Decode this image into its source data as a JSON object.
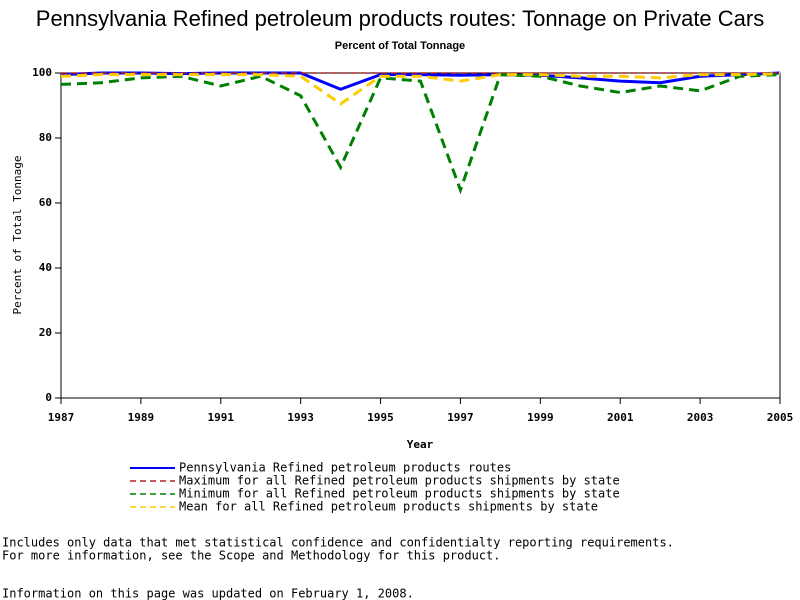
{
  "chart_data": {
    "type": "line",
    "title": "Pennsylvania Refined petroleum products routes: Tonnage on Private Cars",
    "subtitle": "Percent of Total Tonnage",
    "x_label": "Year",
    "y_label": "Percent of Total Tonnage",
    "x": [
      1987,
      1988,
      1989,
      1990,
      1991,
      1992,
      1993,
      1994,
      1995,
      1996,
      1997,
      1998,
      1999,
      2000,
      2001,
      2002,
      2003,
      2004,
      2005
    ],
    "series": [
      {
        "name": "Pennsylvania Refined petroleum products routes",
        "color": "#0000ff",
        "dashed": false,
        "values": [
          99.5,
          100,
          100,
          99.8,
          100,
          100,
          100,
          95,
          99.5,
          99.5,
          99.3,
          99.5,
          99.3,
          98.5,
          97.5,
          97,
          99,
          99.5,
          100
        ]
      },
      {
        "name": "Maximum for all Refined petroleum products shipments by state",
        "color": "#b22222",
        "dashed": true,
        "values": [
          100,
          100,
          100,
          100,
          100,
          100,
          100,
          100,
          100,
          100,
          100,
          100,
          100,
          100,
          100,
          100,
          100,
          100,
          100
        ]
      },
      {
        "name": "Minimum for all Refined petroleum products shipments by state",
        "color": "#008000",
        "dashed": true,
        "values": [
          96.5,
          97,
          98.5,
          99,
          96,
          99,
          93,
          71,
          98.5,
          97.5,
          64,
          99.5,
          99,
          96,
          94,
          96,
          94.5,
          99,
          99.5
        ]
      },
      {
        "name": "Mean for all Refined petroleum products shipments by state",
        "color": "#ffcc00",
        "dashed": true,
        "values": [
          99,
          99.5,
          99.5,
          99.5,
          99.5,
          99.5,
          99,
          90.5,
          99,
          99,
          97.5,
          99.5,
          99.5,
          99,
          99,
          98.5,
          99.5,
          99.5,
          99.8
        ]
      }
    ],
    "xlim": [
      1987,
      2005
    ],
    "ylim": [
      0,
      100
    ],
    "xticks": [
      1987,
      1989,
      1991,
      1993,
      1995,
      1997,
      1999,
      2001,
      2003,
      2005
    ],
    "yticks": [
      0,
      20,
      40,
      60,
      80,
      100
    ],
    "footnotes": [
      "Includes only data that met statistical confidence and confidentialty reporting requirements.",
      "For more information, see the Scope and Methodology for this product.",
      "Information on this page was updated on February 1, 2008."
    ]
  }
}
